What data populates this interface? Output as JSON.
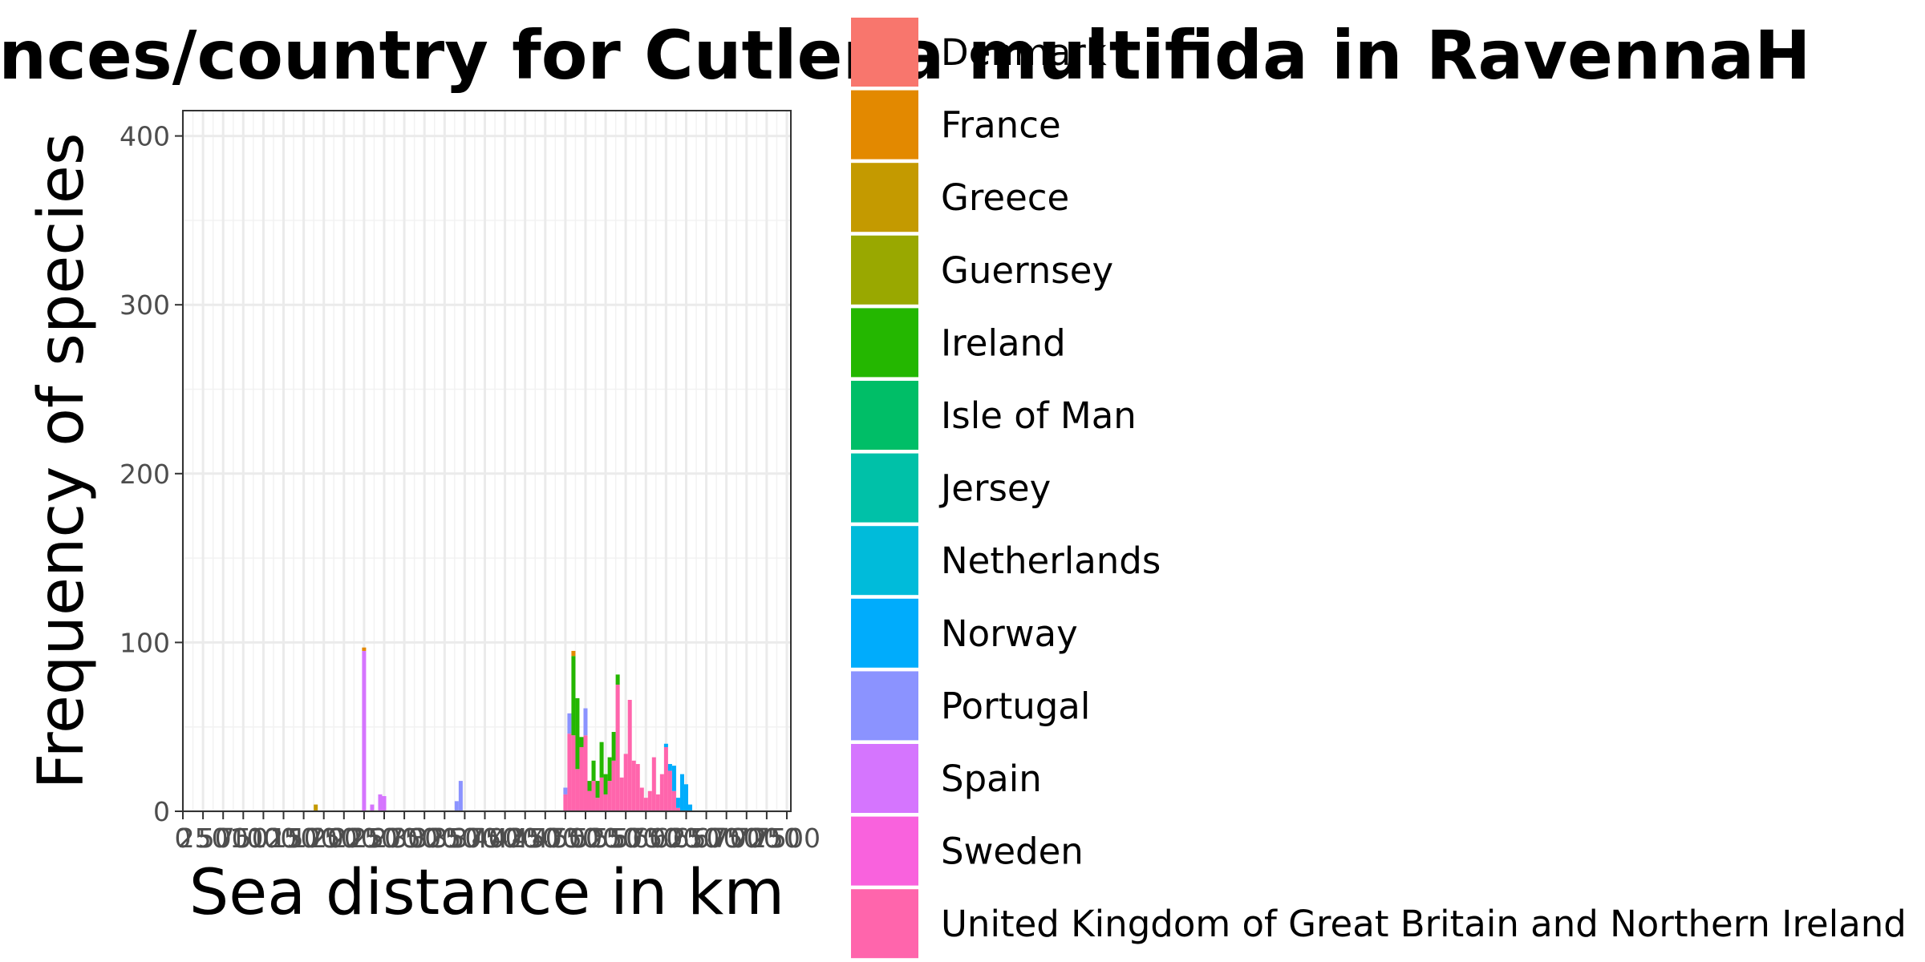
{
  "chart_data": {
    "type": "bar",
    "stacked": true,
    "title": "distances/country for Cutleria multifida in RavennaH",
    "xlabel": "Sea distance in km",
    "ylabel": "Frequency of species",
    "ylim": [
      0,
      415
    ],
    "yticks": [
      0,
      100,
      200,
      300,
      400
    ],
    "xlim": [
      0,
      7550
    ],
    "xticks": [
      0,
      250,
      500,
      750,
      1000,
      1250,
      1500,
      1750,
      2000,
      2250,
      2500,
      2750,
      3000,
      3250,
      3500,
      3750,
      4000,
      4250,
      4500,
      4750,
      5000,
      5250,
      5500,
      5750,
      6000,
      6250,
      6500,
      6750,
      7000,
      7250,
      7500
    ],
    "xtick_labels": [
      "0",
      "250",
      "500",
      "750",
      "1000",
      "1250",
      "1500",
      "1750",
      "2000",
      "2250",
      "2500",
      "2750",
      "3000",
      "3250",
      "3500",
      "3750",
      "4000",
      "4250",
      "4500",
      "4750",
      "5000",
      "5250",
      "5500",
      "5750",
      "6000",
      "6250",
      "6500",
      "6750",
      "7000",
      "7250",
      "7500"
    ],
    "grid": true,
    "bin_width": 50,
    "legend_position": "right",
    "legend": [
      {
        "name": "Denmark",
        "color": "#F8766D"
      },
      {
        "name": "France",
        "color": "#E38900"
      },
      {
        "name": "Greece",
        "color": "#C49A00"
      },
      {
        "name": "Guernsey",
        "color": "#99A800"
      },
      {
        "name": "Ireland",
        "color": "#24B700"
      },
      {
        "name": "Isle of Man",
        "color": "#00BE67"
      },
      {
        "name": "Jersey",
        "color": "#00C1A8"
      },
      {
        "name": "Netherlands",
        "color": "#00BBDA"
      },
      {
        "name": "Norway",
        "color": "#00ACFC"
      },
      {
        "name": "Portugal",
        "color": "#8B93FF"
      },
      {
        "name": "Spain",
        "color": "#D575FE"
      },
      {
        "name": "Sweden",
        "color": "#F962DD"
      },
      {
        "name": "United Kingdom of Great Britain and Northern Ireland",
        "color": "#FF65AC"
      }
    ],
    "bars": [
      {
        "x": 1650,
        "stack": [
          {
            "series": "Greece",
            "value": 4
          }
        ]
      },
      {
        "x": 2250,
        "stack": [
          {
            "series": "Spain",
            "value": 95
          },
          {
            "series": "France",
            "value": 2
          }
        ]
      },
      {
        "x": 2350,
        "stack": [
          {
            "series": "Spain",
            "value": 4
          }
        ]
      },
      {
        "x": 2450,
        "stack": [
          {
            "series": "Spain",
            "value": 10
          }
        ]
      },
      {
        "x": 2500,
        "stack": [
          {
            "series": "Spain",
            "value": 9
          }
        ]
      },
      {
        "x": 3400,
        "stack": [
          {
            "series": "Portugal",
            "value": 6
          }
        ]
      },
      {
        "x": 3450,
        "stack": [
          {
            "series": "Portugal",
            "value": 18
          }
        ]
      },
      {
        "x": 4750,
        "stack": [
          {
            "series": "United Kingdom of Great Britain and Northern Ireland",
            "value": 10
          },
          {
            "series": "Portugal",
            "value": 4
          }
        ]
      },
      {
        "x": 4800,
        "stack": [
          {
            "series": "United Kingdom of Great Britain and Northern Ireland",
            "value": 46
          },
          {
            "series": "Portugal",
            "value": 12
          }
        ]
      },
      {
        "x": 4850,
        "stack": [
          {
            "series": "United Kingdom of Great Britain and Northern Ireland",
            "value": 45
          },
          {
            "series": "Ireland",
            "value": 47
          },
          {
            "series": "France",
            "value": 3
          }
        ]
      },
      {
        "x": 4900,
        "stack": [
          {
            "series": "United Kingdom of Great Britain and Northern Ireland",
            "value": 25
          },
          {
            "series": "Ireland",
            "value": 42
          }
        ]
      },
      {
        "x": 4950,
        "stack": [
          {
            "series": "United Kingdom of Great Britain and Northern Ireland",
            "value": 38
          },
          {
            "series": "Ireland",
            "value": 6
          }
        ]
      },
      {
        "x": 5000,
        "stack": [
          {
            "series": "United Kingdom of Great Britain and Northern Ireland",
            "value": 45
          },
          {
            "series": "Portugal",
            "value": 16
          }
        ]
      },
      {
        "x": 5050,
        "stack": [
          {
            "series": "United Kingdom of Great Britain and Northern Ireland",
            "value": 12
          },
          {
            "series": "Ireland",
            "value": 6
          }
        ]
      },
      {
        "x": 5100,
        "stack": [
          {
            "series": "United Kingdom of Great Britain and Northern Ireland",
            "value": 18
          },
          {
            "series": "Ireland",
            "value": 12
          }
        ]
      },
      {
        "x": 5150,
        "stack": [
          {
            "series": "United Kingdom of Great Britain and Northern Ireland",
            "value": 8
          },
          {
            "series": "Ireland",
            "value": 10
          }
        ]
      },
      {
        "x": 5200,
        "stack": [
          {
            "series": "United Kingdom of Great Britain and Northern Ireland",
            "value": 20
          },
          {
            "series": "Ireland",
            "value": 21
          }
        ]
      },
      {
        "x": 5250,
        "stack": [
          {
            "series": "United Kingdom of Great Britain and Northern Ireland",
            "value": 10
          },
          {
            "series": "Ireland",
            "value": 12
          }
        ]
      },
      {
        "x": 5300,
        "stack": [
          {
            "series": "United Kingdom of Great Britain and Northern Ireland",
            "value": 18
          },
          {
            "series": "Ireland",
            "value": 14
          }
        ]
      },
      {
        "x": 5350,
        "stack": [
          {
            "series": "United Kingdom of Great Britain and Northern Ireland",
            "value": 30
          },
          {
            "series": "Ireland",
            "value": 17
          }
        ]
      },
      {
        "x": 5400,
        "stack": [
          {
            "series": "United Kingdom of Great Britain and Northern Ireland",
            "value": 75
          },
          {
            "series": "Ireland",
            "value": 6
          }
        ]
      },
      {
        "x": 5450,
        "stack": [
          {
            "series": "United Kingdom of Great Britain and Northern Ireland",
            "value": 20
          }
        ]
      },
      {
        "x": 5500,
        "stack": [
          {
            "series": "United Kingdom of Great Britain and Northern Ireland",
            "value": 34
          }
        ]
      },
      {
        "x": 5550,
        "stack": [
          {
            "series": "United Kingdom of Great Britain and Northern Ireland",
            "value": 66
          }
        ]
      },
      {
        "x": 5600,
        "stack": [
          {
            "series": "United Kingdom of Great Britain and Northern Ireland",
            "value": 30
          }
        ]
      },
      {
        "x": 5650,
        "stack": [
          {
            "series": "United Kingdom of Great Britain and Northern Ireland",
            "value": 28
          }
        ]
      },
      {
        "x": 5700,
        "stack": [
          {
            "series": "United Kingdom of Great Britain and Northern Ireland",
            "value": 14
          }
        ]
      },
      {
        "x": 5750,
        "stack": [
          {
            "series": "United Kingdom of Great Britain and Northern Ireland",
            "value": 8
          }
        ]
      },
      {
        "x": 5800,
        "stack": [
          {
            "series": "United Kingdom of Great Britain and Northern Ireland",
            "value": 12
          }
        ]
      },
      {
        "x": 5850,
        "stack": [
          {
            "series": "United Kingdom of Great Britain and Northern Ireland",
            "value": 32
          }
        ]
      },
      {
        "x": 5900,
        "stack": [
          {
            "series": "United Kingdom of Great Britain and Northern Ireland",
            "value": 10
          }
        ]
      },
      {
        "x": 5950,
        "stack": [
          {
            "series": "United Kingdom of Great Britain and Northern Ireland",
            "value": 22
          }
        ]
      },
      {
        "x": 6000,
        "stack": [
          {
            "series": "United Kingdom of Great Britain and Northern Ireland",
            "value": 38
          },
          {
            "series": "Norway",
            "value": 2
          }
        ]
      },
      {
        "x": 6050,
        "stack": [
          {
            "series": "United Kingdom of Great Britain and Northern Ireland",
            "value": 24
          },
          {
            "series": "Norway",
            "value": 4
          }
        ]
      },
      {
        "x": 6100,
        "stack": [
          {
            "series": "United Kingdom of Great Britain and Northern Ireland",
            "value": 12
          },
          {
            "series": "Norway",
            "value": 15
          }
        ]
      },
      {
        "x": 6150,
        "stack": [
          {
            "series": "United Kingdom of Great Britain and Northern Ireland",
            "value": 2
          },
          {
            "series": "Norway",
            "value": 6
          }
        ]
      },
      {
        "x": 6200,
        "stack": [
          {
            "series": "Norway",
            "value": 22
          }
        ]
      },
      {
        "x": 6250,
        "stack": [
          {
            "series": "Norway",
            "value": 16
          }
        ]
      },
      {
        "x": 6300,
        "stack": [
          {
            "series": "Norway",
            "value": 4
          }
        ]
      }
    ]
  }
}
